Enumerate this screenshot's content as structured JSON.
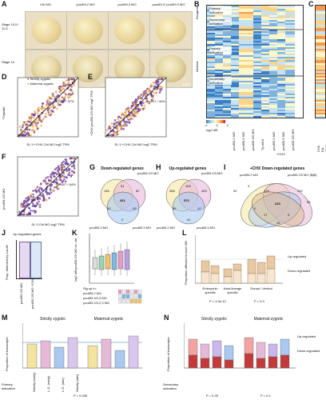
{
  "panels": {
    "A": {
      "letter": "A",
      "columns": [
        "Ctrl MO",
        "pou5f3.2 MO",
        "pou5f3.3 MO",
        "pou5f3.2/ pou5f3.3 MO"
      ],
      "rows": [
        "Stage 10.5 / 11.5",
        "Stage 12"
      ],
      "row_labels": [
        "Stage 10.5\n/11.5",
        "Stage 12\n16/2"
      ],
      "fractions": [
        [
          "",
          "",
          "",
          ""
        ],
        [
          "10/10",
          "6/13",
          "8/10",
          "10/12"
        ]
      ]
    },
    "B": {
      "letter": "B",
      "labels": [
        "Exogenic",
        "Intrinsic",
        "Primary activation",
        "Secondary activation",
        "Primary activation",
        "Secondary activation"
      ],
      "colorbar": {
        "label": "log2 diff",
        "ticks": [
          "-2",
          "-1",
          "0",
          "1",
          "2"
        ]
      },
      "cond_labels": [
        "pou5f3.2 MO",
        "pou5f3.3 MO",
        "pou5f3.2/3 MO",
        "Tp.mKd",
        "pou5f3.2 MO",
        "pou5f3.3 MO",
        "pou5f3.2/3 MO"
      ],
      "cond_group": "+CHX"
    },
    "C": {
      "letter": "C",
      "cond_labels": [
        "CHX EA-EBPI",
        "CHX LTR"
      ]
    },
    "D": {
      "letter": "D",
      "legend": [
        "Strictly zygotic",
        "Maternal-zygotic"
      ],
      "annotation": "n=427 / 57%",
      "xlabel": "St. 9 +CHX Ctrl MO log2 TPM",
      "ylabel": "+Tripl/dbl"
    },
    "E": {
      "letter": "E",
      "annotation": "n=427 / 44%",
      "xlabel": "St. 9 +CHX Ctrl MO log2 TPM",
      "ylabel": "+CHX pou5f3.2/3 MO log2 TPM"
    },
    "F": {
      "letter": "F",
      "annotation": "n=427 / 64%",
      "xlabel": "St. 9 Ctrl MO log2 TPM",
      "ylabel": "pou5f3.2/3 MO"
    },
    "G": {
      "letter": "G",
      "title": "Down-regulated genes",
      "sets": [
        "pou5f3.2 MO",
        "pou5f3.2/3 MO",
        "pou5f3.3 MO"
      ],
      "values": [
        "146",
        "51",
        "82",
        "261",
        "62",
        "43",
        "2"
      ]
    },
    "H": {
      "letter": "H",
      "title": "Up-regulated genes",
      "sets": [
        "pou5f3.2 MO",
        "pou5f3.2/3 MO",
        "pou5f3.3 MO"
      ],
      "values": [
        "368",
        "103",
        "570",
        "85",
        "12",
        "403",
        "41"
      ]
    },
    "I": {
      "letter": "I",
      "title": "+CHX Down-regulated genes",
      "sets": [
        "pou5f3.2 MO",
        "pou5f3.2/3 MO (BjB)",
        "pou5f3.3 MO",
        "pou5f3.2/3 MO"
      ],
      "values": [
        "52",
        "3",
        "133",
        "210",
        "0",
        "17",
        "102",
        "5",
        "25",
        "53"
      ]
    },
    "J": {
      "letter": "J",
      "title": "Up-regulated genes",
      "ylabel": "Prop. detected by cut-off",
      "xlabels": [
        "pou5f3.2/3 MO",
        "pou5f3.2/3 MO +CHX"
      ]
    },
    "K": {
      "letter": "K",
      "ylabel": "log2 diff pou5f3.2/3 MO vs. ctrl",
      "legend_title": "Sig up in:",
      "legend": [
        "pou5f3.2 MO",
        "pou5f3.3/2,3 MO",
        "pou5f3.2/3,2,3 MO"
      ]
    },
    "L": {
      "letter": "L",
      "ylabel": "Proportion affected in each MO",
      "groups": [
        "Embryonic specific",
        "Axial lineage specific",
        "Dorsal / Ventral"
      ],
      "pvals": [
        "P = 1.5e-10",
        "P = 0.3"
      ],
      "legend": [
        "Up-regulated",
        "Down-regulated"
      ]
    },
    "M": {
      "letter": "M",
      "titles": [
        "Strictly zygotic",
        "Maternal-zygotic"
      ],
      "ylabel": "Proportion of transcripts",
      "categories": [
        "Strictly (early)",
        "L.G. (early)",
        "L.G. (late)",
        "Strictly (late)"
      ],
      "row_label": "Primary activation",
      "pval": "P = 0.005"
    },
    "N": {
      "letter": "N",
      "titles": [
        "Strictly zygotic",
        "Maternal-zygotic"
      ],
      "ylabel": "Proportion of transcripts",
      "legend": [
        "Up-regulated",
        "Down-regulated"
      ],
      "row_label": "Secondary activation",
      "pvals": [
        "P = 0.39",
        "P = 0.1"
      ]
    }
  },
  "colors": {
    "zygotic": "#6a3d9a",
    "maternal": "#f0a040",
    "heat_low": "#2c7bb6",
    "heat_mid": "#ffffbf",
    "heat_high": "#d7191c",
    "pink": "#e7b9d8",
    "blue": "#a9c9f0",
    "yellow": "#f6e7a1",
    "tan": "#d9b48a"
  }
}
